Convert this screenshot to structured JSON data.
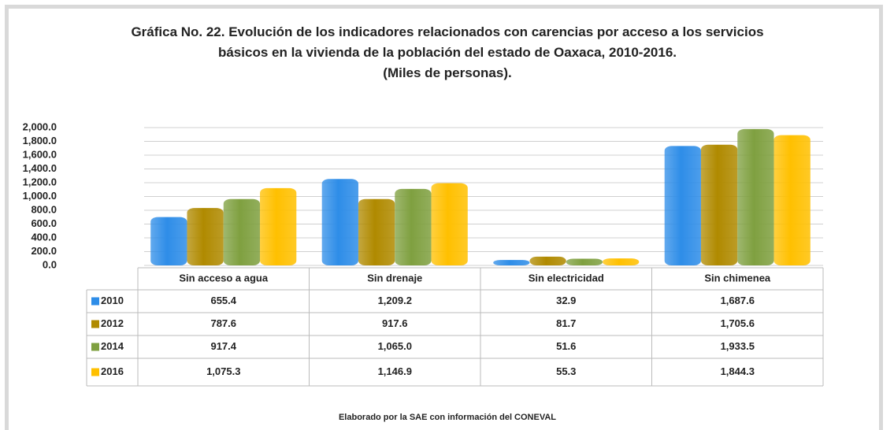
{
  "chart_data": {
    "type": "bar",
    "title": "Gráfica No. 22. Evolución de los indicadores relacionados con carencias por acceso a los servicios básicos en la vivienda de la población del estado de Oaxaca, 2010-2016.",
    "subtitle": "(Miles de personas).",
    "source": "Elaborado por la SAE con información del CONEVAL",
    "categories": [
      "Sin acceso a agua",
      "Sin drenaje",
      "Sin electricidad",
      "Sin chimenea"
    ],
    "series": [
      {
        "name": "2010",
        "color": "#2e8de8",
        "values": [
          655.4,
          1209.2,
          32.9,
          1687.6
        ],
        "value_labels": [
          "655.4",
          "1,209.2",
          "32.9",
          "1,687.6"
        ]
      },
      {
        "name": "2012",
        "color": "#b08a00",
        "values": [
          787.6,
          917.6,
          81.7,
          1705.6
        ],
        "value_labels": [
          "787.6",
          "917.6",
          "81.7",
          "1,705.6"
        ]
      },
      {
        "name": "2014",
        "color": "#7fa040",
        "values": [
          917.4,
          1065.0,
          51.6,
          1933.5
        ],
        "value_labels": [
          "917.4",
          "1,065.0",
          "51.6",
          "1,933.5"
        ]
      },
      {
        "name": "2016",
        "color": "#ffc000",
        "values": [
          1075.3,
          1146.9,
          55.3,
          1844.3
        ],
        "value_labels": [
          "1,075.3",
          "1,146.9",
          "55.3",
          "1,844.3"
        ]
      }
    ],
    "ylim": [
      0,
      2000
    ],
    "yticks": [
      {
        "value": 0,
        "label": "0.0"
      },
      {
        "value": 200,
        "label": "200.0"
      },
      {
        "value": 400,
        "label": "400.0"
      },
      {
        "value": 600,
        "label": "600.0"
      },
      {
        "value": 800,
        "label": "800.0"
      },
      {
        "value": 1000,
        "label": "1,000.0"
      },
      {
        "value": 1200,
        "label": "1,200.0"
      },
      {
        "value": 1400,
        "label": "1,400.0"
      },
      {
        "value": 1600,
        "label": "1,600.0"
      },
      {
        "value": 1800,
        "label": "1,800.0"
      },
      {
        "value": 2000,
        "label": "2,000.0"
      }
    ],
    "grid": true
  }
}
